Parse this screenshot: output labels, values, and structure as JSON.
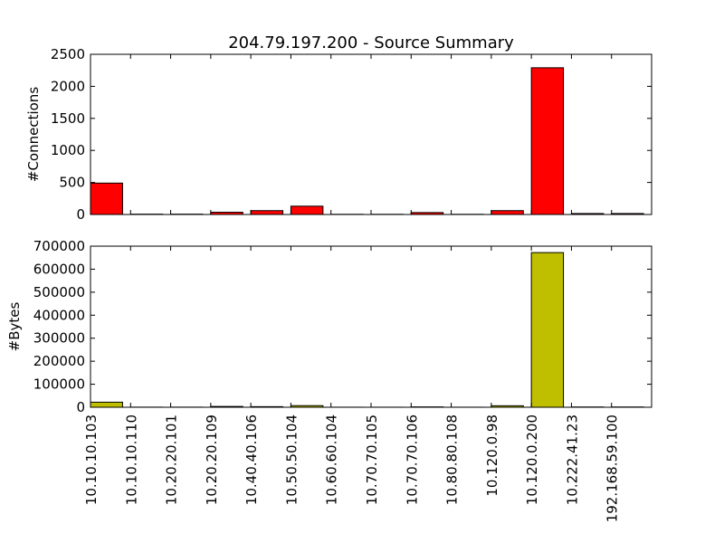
{
  "chart_data": {
    "title": "204.79.197.200 - Source Summary",
    "categories": [
      "10.10.10.103",
      "10.10.10.110",
      "10.20.20.101",
      "10.20.20.109",
      "10.40.40.106",
      "10.50.50.104",
      "10.60.60.104",
      "10.70.70.105",
      "10.70.70.106",
      "10.80.80.108",
      "10.120.0.98",
      "10.120.0.200",
      "10.222.41.23",
      "192.168.59.100"
    ],
    "charts": [
      {
        "type": "bar",
        "ylabel": "#Connections",
        "ylim": [
          0,
          2500
        ],
        "yticks": [
          0,
          500,
          1000,
          1500,
          2000,
          2500
        ],
        "color": "#ff0000",
        "values": [
          490,
          5,
          5,
          35,
          60,
          130,
          3,
          3,
          30,
          3,
          60,
          2290,
          15,
          15
        ]
      },
      {
        "type": "bar",
        "ylabel": "#Bytes",
        "ylim": [
          0,
          700000
        ],
        "yticks": [
          0,
          100000,
          200000,
          300000,
          400000,
          500000,
          600000,
          700000
        ],
        "color": "#bfbf00",
        "values": [
          22000,
          500,
          500,
          3500,
          2500,
          7000,
          300,
          300,
          1500,
          300,
          6500,
          672000,
          1200,
          1200
        ]
      }
    ]
  }
}
